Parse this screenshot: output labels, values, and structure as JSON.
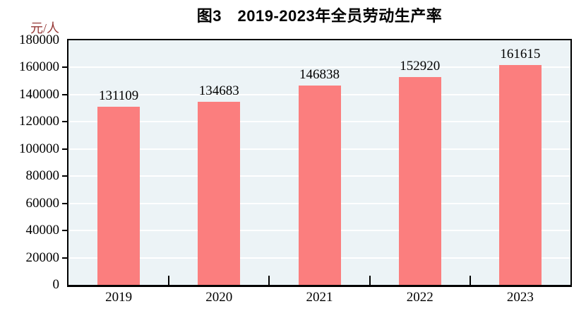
{
  "chart_data": {
    "type": "bar",
    "title": "图3　2019-2023年全员劳动生产率",
    "unit_label": "元/人",
    "categories": [
      "2019",
      "2020",
      "2021",
      "2022",
      "2023"
    ],
    "values": [
      131109,
      134683,
      146838,
      152920,
      161615
    ],
    "value_labels": [
      "131109",
      "134683",
      "146838",
      "152920",
      "161615"
    ],
    "xlabel": "",
    "ylabel": "元/人",
    "ylim": [
      0,
      180000
    ],
    "y_tick_step": 20000,
    "y_ticks": [
      0,
      20000,
      40000,
      60000,
      80000,
      100000,
      120000,
      140000,
      160000,
      180000
    ],
    "grid": true,
    "legend": "none",
    "colors": {
      "bar": "#fb7e7e",
      "plot_background": "#ecf3f6",
      "gridline": "#ffffff",
      "axis": "#000000",
      "title_text": "#000000",
      "unit_label_text": "#953735",
      "tick_label_text": "#000000"
    }
  }
}
